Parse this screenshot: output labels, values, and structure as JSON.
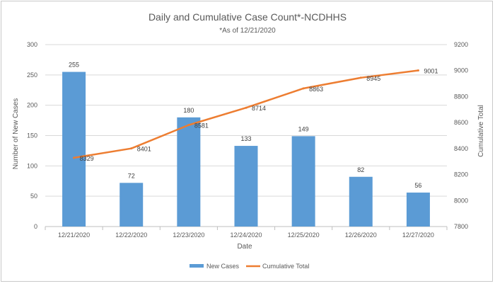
{
  "chart_data": {
    "type": "bar",
    "title": "Daily and Cumulative Case Count*-NCDHHS",
    "subtitle": "*As of 12/21/2020",
    "xlabel": "Date",
    "ylabel": "Number of New Cases",
    "y2label": "Cumulative Total",
    "categories": [
      "12/21/2020",
      "12/22/2020",
      "12/23/2020",
      "12/24/2020",
      "12/25/2020",
      "12/26/2020",
      "12/27/2020"
    ],
    "ylim": [
      0,
      300
    ],
    "yticks": [
      0,
      50,
      100,
      150,
      200,
      250,
      300
    ],
    "y2lim": [
      7800,
      9200
    ],
    "y2ticks": [
      7800,
      8000,
      8200,
      8400,
      8600,
      8800,
      9000,
      9200
    ],
    "grid": true,
    "legend_position": "bottom",
    "series": [
      {
        "name": "New Cases",
        "type": "bar",
        "axis": "left",
        "color": "#5b9bd5",
        "values": [
          255,
          72,
          180,
          133,
          149,
          82,
          56
        ]
      },
      {
        "name": "Cumulative Total",
        "type": "line",
        "axis": "right",
        "color": "#ed7d31",
        "values": [
          8329,
          8401,
          8581,
          8714,
          8863,
          8945,
          9001
        ]
      }
    ]
  }
}
